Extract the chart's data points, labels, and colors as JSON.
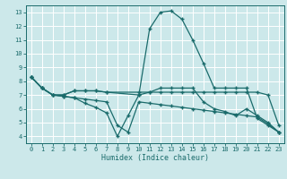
{
  "xlabel": "Humidex (Indice chaleur)",
  "xlim": [
    -0.5,
    23.5
  ],
  "ylim": [
    3.5,
    13.5
  ],
  "xticks": [
    0,
    1,
    2,
    3,
    4,
    5,
    6,
    7,
    8,
    9,
    10,
    11,
    12,
    13,
    14,
    15,
    16,
    17,
    18,
    19,
    20,
    21,
    22,
    23
  ],
  "yticks": [
    4,
    5,
    6,
    7,
    8,
    9,
    10,
    11,
    12,
    13
  ],
  "bg_color": "#cce8ea",
  "grid_color": "#ffffff",
  "line_color": "#1a6b6b",
  "line1": {
    "x": [
      0,
      1,
      2,
      3,
      4,
      5,
      6,
      7,
      10,
      11,
      12,
      13,
      14,
      15,
      16,
      17,
      18,
      19,
      20,
      21,
      22,
      23
    ],
    "y": [
      8.3,
      7.5,
      7.0,
      7.0,
      7.3,
      7.3,
      7.3,
      7.2,
      7.0,
      11.8,
      13.0,
      13.1,
      12.5,
      11.0,
      9.3,
      7.5,
      7.5,
      7.5,
      7.5,
      5.3,
      4.8,
      4.3
    ]
  },
  "line1_gap": {
    "x": [
      7,
      10
    ],
    "y": [
      7.2,
      7.0
    ]
  },
  "line2": {
    "x": [
      0,
      1,
      2,
      3,
      4,
      5,
      6,
      7,
      8,
      9,
      10,
      11,
      12,
      13,
      14,
      15,
      16,
      17,
      18,
      19,
      20,
      21,
      22,
      23
    ],
    "y": [
      8.3,
      7.5,
      7.0,
      6.9,
      6.8,
      6.7,
      6.6,
      6.5,
      4.8,
      4.3,
      6.5,
      6.4,
      6.3,
      6.2,
      6.1,
      6.0,
      5.9,
      5.8,
      5.7,
      5.6,
      5.5,
      5.4,
      4.9,
      4.3
    ]
  },
  "line3_x": [
    0,
    1,
    2,
    3,
    4,
    5,
    6,
    7,
    10,
    11,
    12,
    13,
    14,
    15,
    16,
    17,
    18,
    19,
    20,
    21,
    22,
    23
  ],
  "line3_y": [
    8.3,
    7.5,
    7.0,
    7.0,
    7.3,
    7.3,
    7.3,
    7.2,
    7.2,
    7.2,
    7.2,
    7.2,
    7.2,
    7.2,
    7.2,
    7.2,
    7.2,
    7.2,
    7.2,
    7.2,
    7.0,
    4.8
  ],
  "line4_x": [
    0,
    1,
    2,
    3,
    4,
    5,
    6,
    7,
    8,
    9,
    10,
    11,
    12,
    13,
    14,
    15,
    16,
    17,
    18,
    19,
    20,
    21,
    22,
    23
  ],
  "line4_y": [
    8.3,
    7.5,
    7.0,
    6.9,
    6.8,
    6.4,
    6.1,
    5.7,
    4.0,
    5.5,
    7.0,
    7.2,
    7.5,
    7.5,
    7.5,
    7.5,
    6.5,
    6.0,
    5.8,
    5.5,
    6.0,
    5.5,
    5.0,
    4.3
  ]
}
